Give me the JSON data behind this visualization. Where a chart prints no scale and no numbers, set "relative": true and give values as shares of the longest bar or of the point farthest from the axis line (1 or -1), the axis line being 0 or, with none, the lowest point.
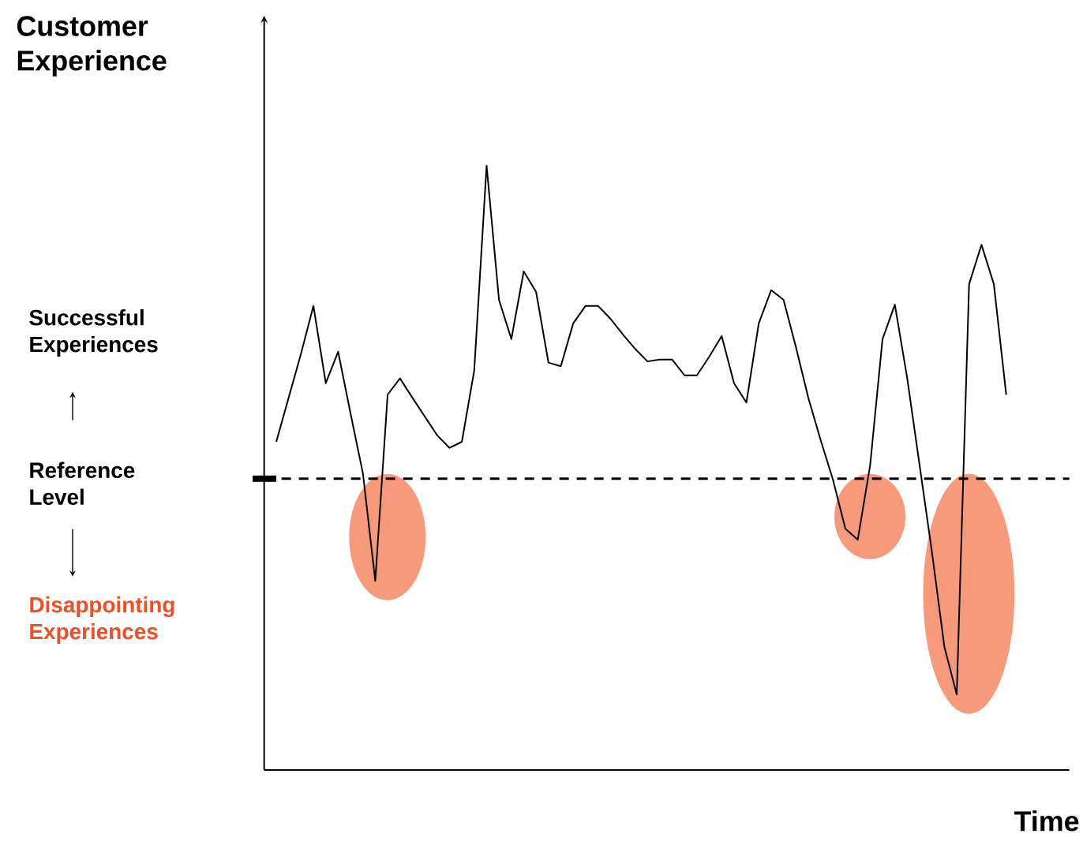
{
  "chart_data": {
    "type": "line",
    "relative": true,
    "ylabel": "Customer Experience",
    "xlabel": "Time",
    "categories": [
      null,
      null,
      null,
      null,
      null,
      null,
      null,
      null,
      null,
      null,
      null,
      null,
      null,
      null,
      null,
      null,
      null,
      null,
      null,
      null,
      null,
      null,
      null,
      null,
      null,
      null,
      null,
      null,
      null,
      null,
      null,
      null,
      null,
      null,
      null,
      null,
      null,
      null,
      null,
      null,
      null,
      null,
      null,
      null,
      null,
      null,
      null,
      null,
      null,
      null,
      null,
      null,
      null,
      null,
      null,
      null,
      null,
      null,
      null,
      null
    ],
    "values": [
      0.543,
      0.616,
      0.689,
      0.768,
      0.64,
      0.692,
      0.59,
      0.491,
      0.313,
      0.621,
      0.648,
      0.616,
      0.585,
      0.554,
      0.533,
      0.543,
      0.661,
      1.0,
      0.778,
      0.713,
      0.825,
      0.791,
      0.674,
      0.668,
      0.739,
      0.768,
      0.768,
      0.747,
      0.721,
      0.697,
      0.676,
      0.679,
      0.679,
      0.653,
      0.653,
      0.684,
      0.718,
      0.64,
      0.608,
      0.739,
      0.794,
      0.778,
      0.7,
      0.616,
      0.546,
      0.48,
      0.399,
      0.381,
      0.504,
      0.713,
      0.77,
      0.648,
      0.504,
      0.36,
      0.204,
      0.125,
      0.804,
      0.869,
      0.804,
      0.621
    ],
    "color": "#000000",
    "ref_lines": [
      {
        "axis": "y",
        "value": 0.482,
        "label": "Reference Level",
        "line_style": "dashed",
        "color": "#000000"
      }
    ],
    "annotations": [
      "Successful Experiences",
      "Disappointing Experiences"
    ]
  }
}
